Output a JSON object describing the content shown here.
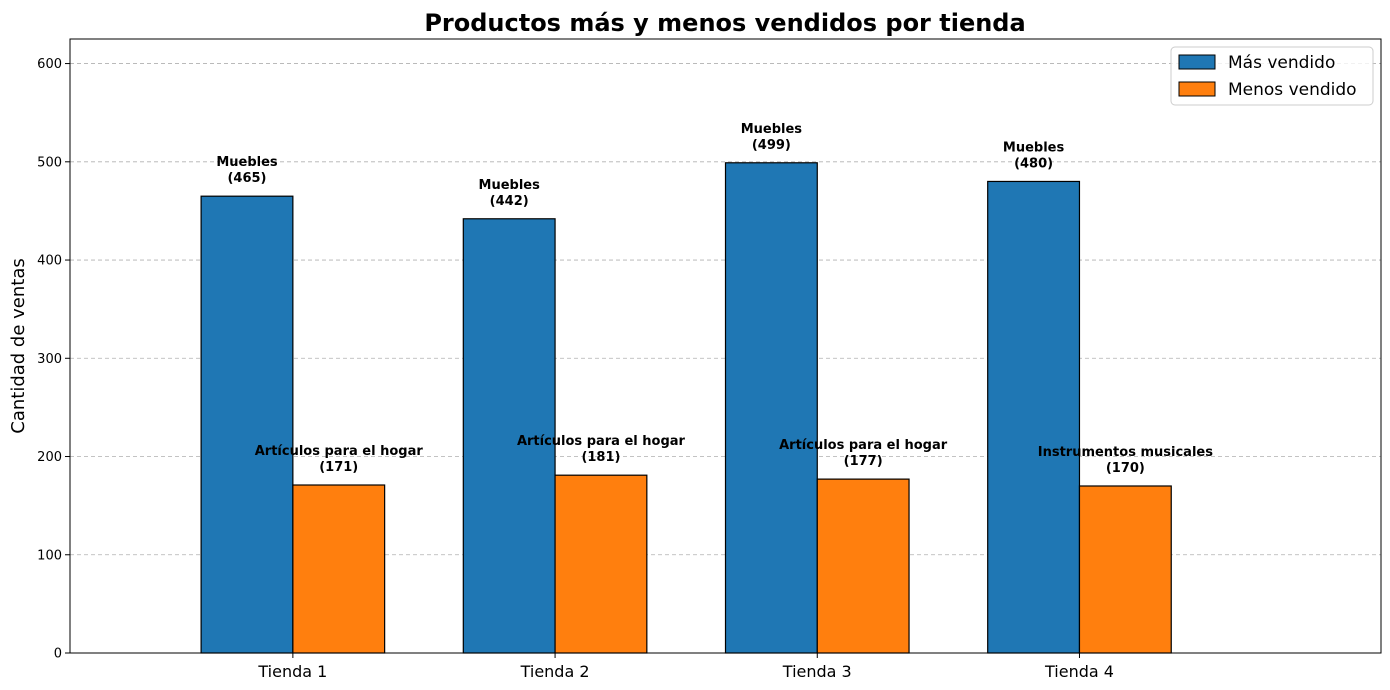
{
  "chart_data": {
    "type": "bar",
    "title": "Productos más y menos vendidos por tienda",
    "xlabel": "",
    "ylabel": "Cantidad de ventas",
    "categories": [
      "Tienda 1",
      "Tienda 2",
      "Tienda 3",
      "Tienda 4"
    ],
    "ylim": [
      0,
      625
    ],
    "yticks": [
      "0",
      "100",
      "200",
      "300",
      "400",
      "500",
      "600"
    ],
    "grid": "y-dashed",
    "legend_position": "top-right",
    "series": [
      {
        "name": "Más vendido",
        "color": "#1f77b4",
        "values": [
          465,
          442,
          499,
          480
        ],
        "labels": [
          "Muebles",
          "Muebles",
          "Muebles",
          "Muebles"
        ],
        "value_labels": [
          "(465)",
          "(442)",
          "(499)",
          "(480)"
        ]
      },
      {
        "name": "Menos vendido",
        "color": "#ff7f0e",
        "values": [
          171,
          181,
          177,
          170
        ],
        "labels": [
          "Artículos para el hogar",
          "Artículos para el hogar",
          "Artículos para el hogar",
          "Instrumentos musicales"
        ],
        "value_labels": [
          "(171)",
          "(181)",
          "(177)",
          "(170)"
        ]
      }
    ]
  }
}
